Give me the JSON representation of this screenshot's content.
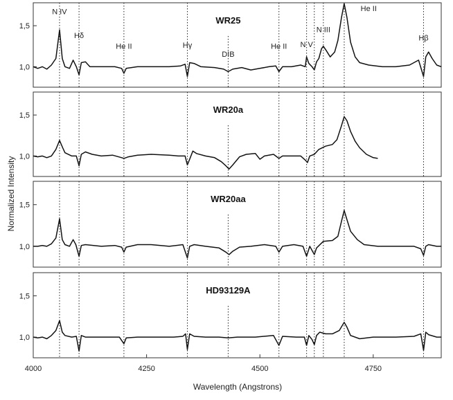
{
  "chart_data": {
    "type": "line",
    "xlabel": "Wavelength (Angstrons)",
    "ylabel": "Normalized Intensity",
    "xlim": [
      4000,
      4900
    ],
    "ylim": [
      0.75,
      1.78
    ],
    "xticks": [
      4000,
      4250,
      4500,
      4750
    ],
    "xtick_labels": [
      "4000",
      "4250",
      "4500",
      "4750"
    ],
    "yticks": [
      1.0,
      1.5
    ],
    "ytick_labels": [
      "1,0",
      "1,5"
    ],
    "grid": false,
    "line_markers": [
      4058,
      4101,
      4200,
      4340,
      4430,
      4542,
      4603,
      4620,
      4640,
      4686,
      4861
    ],
    "line_labels": [
      {
        "text": "N IV",
        "x": 4058,
        "y": 1.64,
        "color": "#222222"
      },
      {
        "text": "Hδ",
        "x": 4101,
        "y": 1.35,
        "color": "#222222"
      },
      {
        "text": "He II",
        "x": 4200,
        "y": 1.22,
        "color": "#222222"
      },
      {
        "text": "Hγ",
        "x": 4340,
        "y": 1.23,
        "color": "#222222"
      },
      {
        "text": "DIB",
        "x": 4430,
        "y": 1.12,
        "color": "#222222"
      },
      {
        "text": "He II",
        "x": 4542,
        "y": 1.22,
        "color": "#222222"
      },
      {
        "text": "N V",
        "x": 4603,
        "y": 1.24,
        "color": "#222222"
      },
      {
        "text": "N III",
        "x": 4640,
        "y": 1.42,
        "color": "#222222"
      },
      {
        "text": "He II",
        "x": 4740,
        "y": 1.68,
        "color": "#888888"
      },
      {
        "text": "Hβ",
        "x": 4861,
        "y": 1.32,
        "color": "#222222"
      }
    ],
    "panels": [
      {
        "name": "WR25",
        "x_end": 4900,
        "points": [
          [
            4000,
            1.0
          ],
          [
            4010,
            0.98
          ],
          [
            4020,
            1.0
          ],
          [
            4030,
            0.97
          ],
          [
            4040,
            1.02
          ],
          [
            4050,
            1.1
          ],
          [
            4058,
            1.45
          ],
          [
            4064,
            1.1
          ],
          [
            4070,
            1.0
          ],
          [
            4080,
            0.98
          ],
          [
            4088,
            1.08
          ],
          [
            4095,
            1.0
          ],
          [
            4101,
            0.9
          ],
          [
            4106,
            1.05
          ],
          [
            4115,
            1.06
          ],
          [
            4125,
            1.0
          ],
          [
            4150,
            1.0
          ],
          [
            4180,
            1.0
          ],
          [
            4195,
            0.98
          ],
          [
            4200,
            0.92
          ],
          [
            4205,
            0.98
          ],
          [
            4230,
            1.0
          ],
          [
            4260,
            1.0
          ],
          [
            4300,
            1.0
          ],
          [
            4325,
            1.01
          ],
          [
            4335,
            1.03
          ],
          [
            4340,
            0.88
          ],
          [
            4345,
            1.05
          ],
          [
            4355,
            1.04
          ],
          [
            4370,
            1.0
          ],
          [
            4400,
            0.99
          ],
          [
            4420,
            0.97
          ],
          [
            4430,
            0.94
          ],
          [
            4440,
            0.97
          ],
          [
            4460,
            0.99
          ],
          [
            4480,
            0.96
          ],
          [
            4500,
            0.98
          ],
          [
            4520,
            1.0
          ],
          [
            4535,
            1.01
          ],
          [
            4542,
            0.94
          ],
          [
            4550,
            1.0
          ],
          [
            4570,
            1.0
          ],
          [
            4590,
            1.02
          ],
          [
            4600,
            1.0
          ],
          [
            4603,
            1.12
          ],
          [
            4608,
            1.04
          ],
          [
            4615,
            1.0
          ],
          [
            4620,
            0.96
          ],
          [
            4625,
            1.06
          ],
          [
            4630,
            1.1
          ],
          [
            4636,
            1.22
          ],
          [
            4640,
            1.25
          ],
          [
            4646,
            1.2
          ],
          [
            4655,
            1.12
          ],
          [
            4665,
            1.18
          ],
          [
            4672,
            1.32
          ],
          [
            4680,
            1.6
          ],
          [
            4686,
            1.77
          ],
          [
            4692,
            1.6
          ],
          [
            4700,
            1.3
          ],
          [
            4710,
            1.12
          ],
          [
            4720,
            1.05
          ],
          [
            4740,
            1.02
          ],
          [
            4770,
            1.0
          ],
          [
            4800,
            1.0
          ],
          [
            4830,
            1.02
          ],
          [
            4850,
            1.08
          ],
          [
            4861,
            0.88
          ],
          [
            4866,
            1.12
          ],
          [
            4872,
            1.18
          ],
          [
            4880,
            1.1
          ],
          [
            4890,
            1.02
          ],
          [
            4900,
            1.0
          ]
        ]
      },
      {
        "name": "WR20a",
        "x_end": 4760,
        "points": [
          [
            4000,
            1.0
          ],
          [
            4010,
            0.99
          ],
          [
            4020,
            1.0
          ],
          [
            4030,
            0.98
          ],
          [
            4040,
            1.0
          ],
          [
            4050,
            1.08
          ],
          [
            4058,
            1.19
          ],
          [
            4065,
            1.1
          ],
          [
            4070,
            1.04
          ],
          [
            4085,
            1.0
          ],
          [
            4095,
            1.0
          ],
          [
            4101,
            0.88
          ],
          [
            4106,
            1.02
          ],
          [
            4115,
            1.05
          ],
          [
            4130,
            1.02
          ],
          [
            4150,
            1.0
          ],
          [
            4175,
            1.01
          ],
          [
            4195,
            0.98
          ],
          [
            4200,
            0.97
          ],
          [
            4210,
            0.99
          ],
          [
            4230,
            1.01
          ],
          [
            4260,
            1.02
          ],
          [
            4300,
            1.01
          ],
          [
            4320,
            1.0
          ],
          [
            4335,
            1.0
          ],
          [
            4340,
            0.89
          ],
          [
            4345,
            0.96
          ],
          [
            4352,
            1.06
          ],
          [
            4360,
            1.03
          ],
          [
            4380,
            1.0
          ],
          [
            4400,
            0.98
          ],
          [
            4415,
            0.93
          ],
          [
            4425,
            0.88
          ],
          [
            4432,
            0.84
          ],
          [
            4440,
            0.89
          ],
          [
            4455,
            0.99
          ],
          [
            4470,
            1.02
          ],
          [
            4490,
            1.03
          ],
          [
            4500,
            0.96
          ],
          [
            4510,
            1.0
          ],
          [
            4530,
            1.02
          ],
          [
            4542,
            0.97
          ],
          [
            4550,
            1.0
          ],
          [
            4570,
            1.0
          ],
          [
            4590,
            1.0
          ],
          [
            4600,
            0.95
          ],
          [
            4605,
            0.92
          ],
          [
            4610,
            1.0
          ],
          [
            4620,
            1.02
          ],
          [
            4630,
            1.08
          ],
          [
            4645,
            1.12
          ],
          [
            4660,
            1.14
          ],
          [
            4670,
            1.2
          ],
          [
            4680,
            1.37
          ],
          [
            4686,
            1.48
          ],
          [
            4692,
            1.43
          ],
          [
            4700,
            1.3
          ],
          [
            4710,
            1.18
          ],
          [
            4720,
            1.1
          ],
          [
            4735,
            1.02
          ],
          [
            4750,
            0.98
          ],
          [
            4760,
            0.97
          ]
        ]
      },
      {
        "name": "WR20aa",
        "x_end": 4900,
        "points": [
          [
            4000,
            1.0
          ],
          [
            4010,
            1.0
          ],
          [
            4020,
            1.01
          ],
          [
            4030,
            1.0
          ],
          [
            4040,
            1.03
          ],
          [
            4050,
            1.1
          ],
          [
            4058,
            1.33
          ],
          [
            4064,
            1.08
          ],
          [
            4070,
            1.02
          ],
          [
            4080,
            1.0
          ],
          [
            4088,
            1.08
          ],
          [
            4094,
            1.02
          ],
          [
            4101,
            0.88
          ],
          [
            4106,
            1.01
          ],
          [
            4115,
            1.02
          ],
          [
            4150,
            1.0
          ],
          [
            4180,
            1.01
          ],
          [
            4195,
            0.99
          ],
          [
            4200,
            0.93
          ],
          [
            4205,
            0.99
          ],
          [
            4230,
            1.02
          ],
          [
            4260,
            1.02
          ],
          [
            4300,
            1.0
          ],
          [
            4330,
            1.02
          ],
          [
            4340,
            0.86
          ],
          [
            4345,
            1.0
          ],
          [
            4355,
            1.02
          ],
          [
            4380,
            1.0
          ],
          [
            4410,
            0.98
          ],
          [
            4425,
            0.93
          ],
          [
            4432,
            0.9
          ],
          [
            4440,
            0.94
          ],
          [
            4455,
            0.99
          ],
          [
            4480,
            1.0
          ],
          [
            4510,
            1.02
          ],
          [
            4535,
            1.0
          ],
          [
            4542,
            0.93
          ],
          [
            4550,
            1.0
          ],
          [
            4575,
            1.02
          ],
          [
            4595,
            1.0
          ],
          [
            4603,
            0.88
          ],
          [
            4610,
            1.0
          ],
          [
            4620,
            0.9
          ],
          [
            4625,
            0.98
          ],
          [
            4640,
            1.06
          ],
          [
            4660,
            1.07
          ],
          [
            4672,
            1.12
          ],
          [
            4680,
            1.3
          ],
          [
            4686,
            1.43
          ],
          [
            4692,
            1.32
          ],
          [
            4700,
            1.18
          ],
          [
            4715,
            1.08
          ],
          [
            4730,
            1.02
          ],
          [
            4760,
            1.0
          ],
          [
            4800,
            1.0
          ],
          [
            4840,
            1.0
          ],
          [
            4855,
            0.97
          ],
          [
            4861,
            0.89
          ],
          [
            4866,
            1.0
          ],
          [
            4872,
            1.02
          ],
          [
            4890,
            1.0
          ],
          [
            4900,
            1.0
          ]
        ]
      },
      {
        "name": "HD93129A",
        "x_end": 4900,
        "points": [
          [
            4000,
            1.0
          ],
          [
            4010,
            0.99
          ],
          [
            4020,
            1.0
          ],
          [
            4030,
            0.98
          ],
          [
            4040,
            1.02
          ],
          [
            4050,
            1.08
          ],
          [
            4058,
            1.2
          ],
          [
            4064,
            1.06
          ],
          [
            4070,
            1.02
          ],
          [
            4085,
            1.0
          ],
          [
            4095,
            1.01
          ],
          [
            4101,
            0.83
          ],
          [
            4106,
            1.02
          ],
          [
            4115,
            1.0
          ],
          [
            4150,
            1.0
          ],
          [
            4190,
            1.0
          ],
          [
            4200,
            0.92
          ],
          [
            4205,
            0.99
          ],
          [
            4230,
            1.0
          ],
          [
            4270,
            1.0
          ],
          [
            4310,
            1.0
          ],
          [
            4330,
            1.01
          ],
          [
            4336,
            1.04
          ],
          [
            4340,
            0.85
          ],
          [
            4345,
            1.04
          ],
          [
            4355,
            1.01
          ],
          [
            4380,
            1.0
          ],
          [
            4410,
            1.0
          ],
          [
            4430,
            0.99
          ],
          [
            4450,
            1.0
          ],
          [
            4490,
            1.0
          ],
          [
            4530,
            1.02
          ],
          [
            4542,
            0.9
          ],
          [
            4550,
            1.01
          ],
          [
            4580,
            1.0
          ],
          [
            4598,
            1.0
          ],
          [
            4603,
            0.9
          ],
          [
            4608,
            1.02
          ],
          [
            4615,
            0.97
          ],
          [
            4620,
            0.91
          ],
          [
            4625,
            1.02
          ],
          [
            4632,
            1.06
          ],
          [
            4645,
            1.04
          ],
          [
            4660,
            1.04
          ],
          [
            4675,
            1.08
          ],
          [
            4686,
            1.18
          ],
          [
            4692,
            1.12
          ],
          [
            4700,
            1.02
          ],
          [
            4720,
            0.98
          ],
          [
            4750,
            1.0
          ],
          [
            4800,
            1.0
          ],
          [
            4840,
            1.01
          ],
          [
            4855,
            1.04
          ],
          [
            4861,
            0.84
          ],
          [
            4866,
            1.06
          ],
          [
            4872,
            1.03
          ],
          [
            4890,
            1.0
          ],
          [
            4900,
            1.0
          ]
        ]
      }
    ]
  }
}
